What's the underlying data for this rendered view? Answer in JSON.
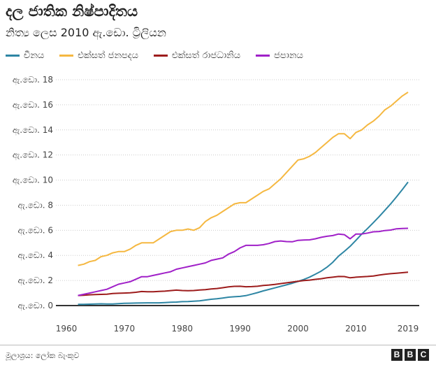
{
  "title": "දල ජාතික නිෂ්පාදිතය",
  "subtitle": "නිත්‍ය ලෙස 2010 ඇ.ඩො. ට්‍රිලියන",
  "source": "මූලාශ්‍රය: ලෝක බැංකුව",
  "brand": [
    "B",
    "B",
    "C"
  ],
  "chart_data": {
    "type": "line",
    "title": "දල ජාතික නිෂ්පාදිතය",
    "subtitle": "නිත්‍ය ලෙස 2010 ඇ.ඩො. ට්‍රිලියන",
    "xlim": [
      1960,
      2019
    ],
    "ylim": [
      0,
      18
    ],
    "x_ticks": [
      1960,
      1970,
      1980,
      1990,
      2000,
      2010,
      2019
    ],
    "x_tick_labels": [
      "1960",
      "1970",
      "1980",
      "1990",
      "2000",
      "2010",
      "2019"
    ],
    "y_ticks": [
      0,
      2,
      4,
      6,
      8,
      10,
      12,
      14,
      16,
      18
    ],
    "y_tick_labels": [
      "ඇ.ඩො. 0",
      "ඇ.ඩො. 2",
      "ඇ.ඩො. 4",
      "ඇ.ඩො. 6",
      "ඇ.ඩො. 8",
      "ඇ.ඩො. 10",
      "ඇ.ඩො. 12",
      "ඇ.ඩො. 14",
      "ඇ.ඩො. 16",
      "ඇ.ඩො. 18"
    ],
    "grid": "horizontal dotted",
    "legend_position": "top",
    "x": [
      1962,
      1963,
      1964,
      1965,
      1966,
      1967,
      1968,
      1969,
      1970,
      1971,
      1972,
      1973,
      1974,
      1975,
      1976,
      1977,
      1978,
      1979,
      1980,
      1981,
      1982,
      1983,
      1984,
      1985,
      1986,
      1987,
      1988,
      1989,
      1990,
      1991,
      1992,
      1993,
      1994,
      1995,
      1996,
      1997,
      1998,
      1999,
      2000,
      2001,
      2002,
      2003,
      2004,
      2005,
      2006,
      2007,
      2008,
      2009,
      2010,
      2011,
      2012,
      2013,
      2014,
      2015,
      2016,
      2017,
      2018,
      2019
    ],
    "series": [
      {
        "name": "චීනය",
        "color": "#2e86a4",
        "values": [
          0.1,
          0.1,
          0.11,
          0.12,
          0.14,
          0.13,
          0.13,
          0.15,
          0.18,
          0.19,
          0.2,
          0.21,
          0.22,
          0.22,
          0.22,
          0.24,
          0.26,
          0.28,
          0.31,
          0.32,
          0.35,
          0.38,
          0.44,
          0.5,
          0.54,
          0.6,
          0.67,
          0.7,
          0.73,
          0.79,
          0.91,
          1.03,
          1.17,
          1.29,
          1.41,
          1.53,
          1.65,
          1.78,
          1.92,
          2.08,
          2.27,
          2.5,
          2.75,
          3.06,
          3.45,
          3.94,
          4.32,
          4.72,
          5.2,
          5.7,
          6.14,
          6.61,
          7.09,
          7.59,
          8.1,
          8.66,
          9.24,
          9.84
        ]
      },
      {
        "name": "එක්සත් ජනපදය",
        "color": "#f5b841",
        "values": [
          3.2,
          3.3,
          3.5,
          3.6,
          3.9,
          4.0,
          4.2,
          4.3,
          4.3,
          4.5,
          4.8,
          5.0,
          5.0,
          5.0,
          5.3,
          5.6,
          5.9,
          6.0,
          6.0,
          6.1,
          6.0,
          6.2,
          6.7,
          7.0,
          7.2,
          7.5,
          7.8,
          8.1,
          8.2,
          8.2,
          8.5,
          8.8,
          9.1,
          9.3,
          9.7,
          10.1,
          10.6,
          11.1,
          11.6,
          11.7,
          11.9,
          12.2,
          12.6,
          13.0,
          13.4,
          13.7,
          13.7,
          13.3,
          13.8,
          14.0,
          14.4,
          14.7,
          15.1,
          15.6,
          15.9,
          16.3,
          16.7,
          17.0
        ]
      },
      {
        "name": "එක්සත් රාජධානිය",
        "color": "#9d1c1c",
        "values": [
          0.8,
          0.82,
          0.86,
          0.88,
          0.89,
          0.91,
          0.96,
          0.98,
          1.0,
          1.02,
          1.06,
          1.12,
          1.1,
          1.1,
          1.13,
          1.15,
          1.19,
          1.23,
          1.2,
          1.18,
          1.2,
          1.24,
          1.27,
          1.32,
          1.36,
          1.42,
          1.49,
          1.53,
          1.54,
          1.5,
          1.51,
          1.54,
          1.6,
          1.64,
          1.69,
          1.75,
          1.81,
          1.87,
          1.94,
          1.99,
          2.03,
          2.09,
          2.14,
          2.21,
          2.26,
          2.32,
          2.31,
          2.21,
          2.26,
          2.29,
          2.32,
          2.36,
          2.43,
          2.49,
          2.54,
          2.58,
          2.62,
          2.66
        ]
      },
      {
        "name": "ජපානය",
        "color": "#a020c8",
        "values": [
          0.8,
          0.9,
          1.0,
          1.1,
          1.2,
          1.3,
          1.5,
          1.7,
          1.8,
          1.9,
          2.1,
          2.3,
          2.3,
          2.4,
          2.5,
          2.6,
          2.7,
          2.9,
          3.0,
          3.1,
          3.2,
          3.3,
          3.4,
          3.6,
          3.7,
          3.8,
          4.1,
          4.3,
          4.6,
          4.8,
          4.8,
          4.8,
          4.85,
          4.95,
          5.1,
          5.15,
          5.1,
          5.08,
          5.2,
          5.22,
          5.24,
          5.32,
          5.44,
          5.52,
          5.58,
          5.7,
          5.65,
          5.32,
          5.7,
          5.7,
          5.78,
          5.88,
          5.9,
          5.98,
          6.02,
          6.12,
          6.14,
          6.16
        ]
      }
    ]
  }
}
